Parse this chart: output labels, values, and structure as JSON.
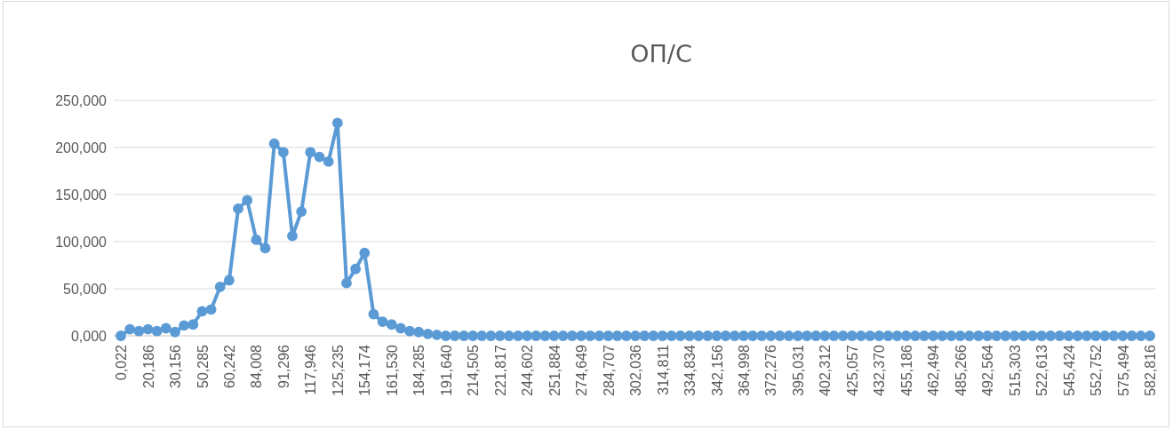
{
  "chart_data": {
    "type": "line",
    "title": "ОП/С",
    "categories": [
      "0,022",
      null,
      null,
      "20,186",
      null,
      null,
      "30,156",
      null,
      null,
      "50,285",
      null,
      null,
      "60,242",
      null,
      null,
      "84,008",
      null,
      null,
      "91,296",
      null,
      null,
      "117,946",
      null,
      null,
      "125,235",
      null,
      null,
      "154,174",
      null,
      null,
      "161,530",
      null,
      null,
      "184,285",
      null,
      null,
      "191,640",
      null,
      null,
      "214,505",
      null,
      null,
      "221,817",
      null,
      null,
      "244,602",
      null,
      null,
      "251,884",
      null,
      null,
      "274,649",
      null,
      null,
      "284,707",
      null,
      null,
      "302,036",
      null,
      null,
      "314,811",
      null,
      null,
      "334,834",
      null,
      null,
      "342,156",
      null,
      null,
      "364,998",
      null,
      null,
      "372,276",
      null,
      null,
      "395,031",
      null,
      null,
      "402,312",
      null,
      null,
      "425,057",
      null,
      null,
      "432,370",
      null,
      null,
      "455,186",
      null,
      null,
      "462,494",
      null,
      null,
      "485,266",
      null,
      null,
      "492,564",
      null,
      null,
      "515,303",
      null,
      null,
      "522,613",
      null,
      null,
      "545,424",
      null,
      null,
      "552,752",
      null,
      null,
      "575,494",
      null,
      null,
      "582,816"
    ],
    "series": [
      {
        "color": "#5b9bd5",
        "values": [
          0,
          7,
          5,
          7,
          5,
          8,
          4,
          11,
          12,
          26,
          28,
          52,
          59,
          135,
          144,
          102,
          93,
          204,
          195,
          106,
          132,
          195,
          190,
          185,
          226,
          56,
          71,
          88,
          23,
          15,
          12,
          8,
          5,
          4,
          2,
          1,
          0,
          0,
          0,
          0,
          0,
          0,
          0,
          0,
          0,
          0,
          0,
          0,
          0,
          0,
          0,
          0,
          0,
          0,
          0,
          0,
          0,
          0,
          0,
          0,
          0,
          0,
          0,
          0,
          0,
          0,
          0,
          0,
          0,
          0,
          0,
          0,
          0,
          0,
          0,
          0,
          0,
          0,
          0,
          0,
          0,
          0,
          0,
          0,
          0,
          0,
          0,
          0,
          0,
          0,
          0,
          0,
          0,
          0,
          0,
          0,
          0,
          0,
          0,
          0,
          0,
          0,
          0,
          0,
          0,
          0,
          0,
          0,
          0,
          0,
          0,
          0,
          0,
          0,
          0
        ]
      }
    ],
    "ylim": [
      0,
      250
    ],
    "yticks": [
      {
        "value": 0,
        "label": "0,000"
      },
      {
        "value": 50,
        "label": "50,000"
      },
      {
        "value": 100,
        "label": "100,000"
      },
      {
        "value": 150,
        "label": "150,000"
      },
      {
        "value": 200,
        "label": "200,000"
      },
      {
        "value": 250,
        "label": "250,000"
      }
    ],
    "grid": "y",
    "marker": "circle",
    "line_style": "solid"
  }
}
